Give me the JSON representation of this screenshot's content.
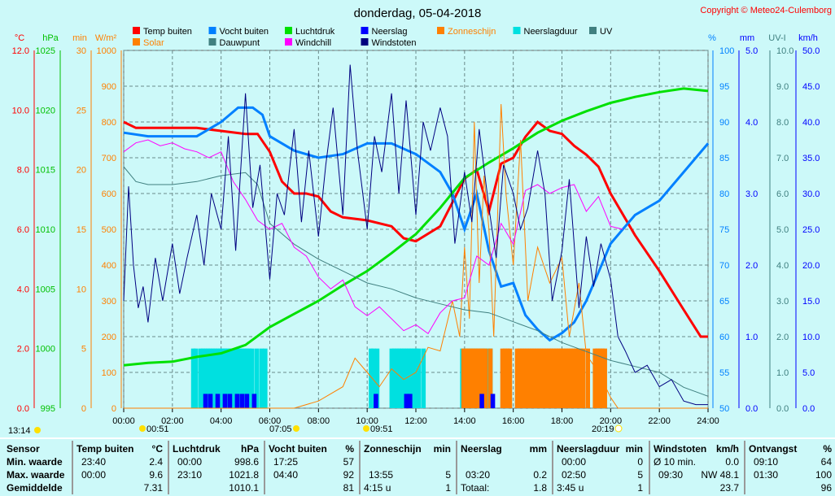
{
  "title": "donderdag, 05-04-2018",
  "copyright": "Copyright © Meteo24-Culemborg",
  "legend": [
    {
      "label": "Temp buiten",
      "color": "#ff0000"
    },
    {
      "label": "Vocht buiten",
      "color": "#0080ff"
    },
    {
      "label": "Luchtdruk",
      "color": "#00e000"
    },
    {
      "label": "Neerslag",
      "color": "#0000ff"
    },
    {
      "label": "Zonneschijn",
      "color": "#ff8000"
    },
    {
      "label": "Neerslagduur",
      "color": "#00e0e0"
    },
    {
      "label": "UV",
      "color": "#408080"
    },
    {
      "label": "Solar",
      "color": "#ff8000"
    },
    {
      "label": "Dauwpunt",
      "color": "#408080"
    },
    {
      "label": "Windchill",
      "color": "#ff00ff"
    },
    {
      "label": "Windstoten",
      "color": "#000080"
    }
  ],
  "sun_events": {
    "left": "13:14",
    "moonrise": "00:51",
    "sunrise": "07:05",
    "moonset": "09:51",
    "sunset": "20:19"
  },
  "chart_data": {
    "type": "line",
    "x_ticks": [
      "00:00",
      "02:00",
      "04:00",
      "06:00",
      "08:00",
      "10:00",
      "12:00",
      "14:00",
      "16:00",
      "18:00",
      "20:00",
      "22:00",
      "24:00"
    ],
    "axes": {
      "temp": {
        "label": "°C",
        "range": [
          0,
          12
        ],
        "ticks": [
          "0.0",
          "2.0",
          "4.0",
          "6.0",
          "8.0",
          "10.0",
          "12.0"
        ]
      },
      "pressure": {
        "label": "hPa",
        "range": [
          995,
          1025
        ],
        "ticks": [
          "995",
          "1000",
          "1005",
          "1010",
          "1015",
          "1020",
          "1025"
        ]
      },
      "minutes": {
        "label": "min",
        "range": [
          0,
          30
        ],
        "ticks": [
          "0",
          "5",
          "10",
          "15",
          "20",
          "25",
          "30"
        ]
      },
      "solar": {
        "label": "W/m²",
        "range": [
          0,
          1000
        ],
        "ticks": [
          "0",
          "100",
          "200",
          "300",
          "400",
          "500",
          "600",
          "700",
          "800",
          "900",
          "1000"
        ]
      },
      "humidity": {
        "label": "%",
        "range": [
          50,
          100
        ],
        "ticks": [
          "50",
          "55",
          "60",
          "65",
          "70",
          "75",
          "80",
          "85",
          "90",
          "95",
          "100"
        ]
      },
      "rain": {
        "label": "mm",
        "range": [
          0,
          5
        ],
        "ticks": [
          "0.0",
          "1.0",
          "2.0",
          "3.0",
          "4.0",
          "5.0"
        ]
      },
      "uv": {
        "label": "UV-I",
        "range": [
          0,
          10
        ],
        "ticks": [
          "0.0",
          "1.0",
          "2.0",
          "3.0",
          "4.0",
          "5.0",
          "6.0",
          "7.0",
          "8.0",
          "9.0",
          "10.0"
        ]
      },
      "wind": {
        "label": "km/h",
        "range": [
          0,
          50
        ],
        "ticks": [
          "0.0",
          "5.0",
          "10.0",
          "15.0",
          "20.0",
          "25.0",
          "30.0",
          "35.0",
          "40.0",
          "45.0",
          "50.0"
        ]
      }
    },
    "series": [
      {
        "name": "Temp buiten",
        "axis": "temp",
        "color": "#ff0000",
        "width": 3,
        "x": [
          0,
          0.5,
          1,
          2,
          3,
          4,
          5,
          5.5,
          6,
          6.5,
          7,
          7.5,
          8,
          8.5,
          9,
          10,
          11,
          11.5,
          12,
          13,
          13.5,
          14,
          14.5,
          15,
          15.5,
          16,
          16.5,
          17,
          17.5,
          18,
          18.5,
          19,
          19.5,
          20,
          21,
          22,
          23,
          23.7,
          24
        ],
        "y": [
          9.6,
          9.4,
          9.4,
          9.4,
          9.4,
          9.3,
          9.2,
          9.2,
          8.6,
          7.6,
          7.2,
          7.2,
          7.1,
          6.6,
          6.4,
          6.3,
          6.1,
          5.7,
          5.6,
          6.1,
          6.9,
          7.7,
          8.0,
          6.6,
          8.2,
          8.4,
          9.1,
          9.6,
          9.3,
          9.2,
          8.8,
          8.5,
          8.1,
          7.2,
          5.8,
          4.6,
          3.3,
          2.4,
          2.4
        ]
      },
      {
        "name": "Vocht buiten",
        "axis": "humidity",
        "color": "#0080ff",
        "width": 3,
        "x": [
          0,
          1,
          2,
          3,
          4,
          4.7,
          5.3,
          5.7,
          6,
          7,
          8,
          9,
          10,
          11,
          12,
          13,
          13.5,
          14,
          14.5,
          15,
          15.5,
          16,
          16.5,
          17,
          17.5,
          18,
          18.5,
          19,
          19.5,
          20,
          21,
          22,
          23,
          24
        ],
        "y": [
          88.5,
          88,
          88,
          88,
          90,
          92,
          92,
          91,
          88,
          86,
          85,
          85.5,
          87,
          87,
          85.5,
          83,
          80,
          75,
          80,
          72,
          67,
          67.5,
          63,
          61,
          59.5,
          60.5,
          62,
          65,
          69,
          73,
          77,
          79,
          83,
          87
        ]
      },
      {
        "name": "Luchtdruk",
        "axis": "pressure",
        "color": "#00e000",
        "width": 3,
        "x": [
          0,
          1,
          2,
          3,
          4,
          5,
          6,
          7,
          8,
          9,
          10,
          11,
          12,
          13,
          14,
          15,
          16,
          17,
          18,
          19,
          20,
          21,
          22,
          23,
          24
        ],
        "y": [
          998.6,
          998.8,
          998.9,
          999.3,
          999.6,
          1000.3,
          1001.8,
          1002.9,
          1004.0,
          1005.3,
          1006.5,
          1008.0,
          1009.6,
          1011.8,
          1014.3,
          1015.6,
          1016.8,
          1018.1,
          1019.1,
          1019.9,
          1020.6,
          1021.1,
          1021.5,
          1021.8,
          1021.6
        ]
      },
      {
        "name": "Solar",
        "axis": "solar",
        "color": "#ff8000",
        "width": 1,
        "x": [
          0,
          7,
          8,
          9,
          9.5,
          10,
          10.5,
          11,
          11.5,
          12,
          12.5,
          13,
          13.5,
          13.8,
          14,
          14.2,
          14.4,
          14.6,
          14.8,
          15,
          15.2,
          15.5,
          15.7,
          16,
          16.3,
          16.6,
          17,
          17.5,
          18,
          18.3,
          18.7,
          19,
          19.5,
          20,
          20.3,
          24
        ],
        "y": [
          0,
          0,
          20,
          60,
          140,
          100,
          60,
          110,
          80,
          100,
          170,
          160,
          300,
          200,
          450,
          250,
          800,
          350,
          650,
          500,
          200,
          850,
          600,
          400,
          750,
          300,
          450,
          350,
          420,
          200,
          350,
          150,
          100,
          30,
          0,
          0
        ]
      },
      {
        "name": "Dauwpunt",
        "axis": "temp",
        "color": "#408080",
        "width": 1,
        "x": [
          0,
          0.5,
          1,
          2,
          3,
          4,
          5,
          5.5,
          6,
          7,
          8,
          9,
          10,
          11,
          12,
          13,
          14,
          15,
          16,
          17,
          18,
          19,
          20,
          21,
          22,
          23,
          24
        ],
        "y": [
          8.1,
          7.6,
          7.5,
          7.5,
          7.6,
          7.8,
          7.9,
          7.5,
          6.2,
          5.5,
          5.0,
          4.6,
          4.2,
          4.0,
          3.7,
          3.5,
          3.3,
          3.2,
          2.9,
          2.6,
          2.2,
          1.9,
          1.6,
          1.4,
          1.2,
          0.7,
          0.4
        ]
      },
      {
        "name": "Windchill",
        "axis": "temp",
        "color": "#ff00ff",
        "width": 1,
        "x": [
          0,
          0.5,
          1,
          1.5,
          2,
          2.5,
          3,
          3.5,
          4,
          4.5,
          5,
          5.5,
          6,
          6.5,
          7,
          7.5,
          8,
          8.5,
          9,
          9.5,
          10,
          10.5,
          11,
          11.5,
          12,
          12.5,
          13,
          13.5,
          14,
          14.5,
          15,
          15.5,
          16,
          16.5,
          17,
          17.5,
          18,
          18.5,
          19,
          19.5,
          20,
          20.5
        ],
        "y": [
          8.6,
          8.9,
          9.0,
          8.8,
          8.9,
          8.7,
          8.6,
          8.4,
          8.6,
          7.6,
          7.0,
          6.3,
          6.0,
          6.2,
          5.4,
          5.1,
          4.4,
          4.0,
          4.3,
          3.4,
          3.1,
          3.4,
          3.0,
          2.6,
          2.8,
          2.5,
          3.2,
          3.6,
          3.7,
          5.1,
          4.8,
          6.2,
          5.5,
          7.3,
          7.5,
          7.2,
          7.4,
          7.5,
          6.6,
          7.1,
          6.1,
          6.0
        ]
      },
      {
        "name": "Windstoten",
        "axis": "wind",
        "color": "#000080",
        "width": 1,
        "x": [
          0,
          0.2,
          0.4,
          0.6,
          0.8,
          1,
          1.3,
          1.6,
          2,
          2.3,
          2.6,
          3,
          3.3,
          3.6,
          4,
          4.3,
          4.6,
          5,
          5.3,
          5.6,
          6,
          6.3,
          6.6,
          7,
          7.3,
          7.6,
          8,
          8.3,
          8.6,
          9,
          9.3,
          9.6,
          10,
          10.3,
          10.6,
          11,
          11.3,
          11.6,
          12,
          12.3,
          12.6,
          13,
          13.3,
          13.6,
          14,
          14.3,
          14.6,
          15,
          15.3,
          15.6,
          16,
          16.3,
          16.6,
          17,
          17.3,
          17.6,
          18,
          18.3,
          18.7,
          19,
          19.3,
          19.6,
          20,
          20.3,
          20.6,
          21,
          21.5,
          22,
          22.5,
          23,
          23.5,
          24
        ],
        "y": [
          15,
          31,
          20,
          14,
          17,
          12,
          21,
          15,
          23,
          16,
          21,
          27,
          20,
          30,
          25,
          38,
          22,
          44,
          28,
          34,
          18,
          30,
          27,
          39,
          26,
          36,
          24,
          34,
          42,
          27,
          48,
          36,
          25,
          38,
          33,
          44,
          30,
          43,
          27,
          40,
          36,
          42,
          38,
          23,
          33,
          26,
          39,
          28,
          21,
          34,
          30,
          25,
          28,
          36,
          30,
          15,
          22,
          32,
          14,
          24,
          17,
          23,
          18,
          10,
          8,
          5,
          6,
          3,
          4,
          1,
          0.5,
          0.5
        ]
      }
    ],
    "bars": {
      "neerslagduur": {
        "axis": "minutes",
        "color": "#00e0e0",
        "x": [
          2.85,
          2.95,
          3.15,
          3.25,
          3.35,
          3.45,
          3.55,
          3.65,
          3.75,
          3.85,
          3.95,
          4.05,
          4.15,
          4.25,
          4.35,
          4.45,
          4.55,
          4.65,
          4.75,
          4.85,
          4.95,
          5.05,
          5.15,
          5.25,
          5.45,
          5.65,
          5.8,
          10.15,
          10.25,
          10.4,
          11.0,
          11.1,
          11.2,
          11.3,
          11.4,
          11.5,
          11.6,
          11.7,
          11.8,
          11.9,
          12.0,
          12.1,
          12.3,
          13.9,
          14.05,
          14.15,
          14.25,
          14.35,
          14.45,
          14.55,
          14.7,
          14.8,
          14.95,
          15.05
        ],
        "values": [
          5,
          5,
          5,
          5,
          5,
          5,
          5,
          5,
          5,
          5,
          5,
          5,
          5,
          5,
          5,
          5,
          5,
          5,
          5,
          5,
          5,
          5,
          5,
          5,
          5,
          5,
          5,
          5,
          5,
          5,
          5,
          5,
          5,
          5,
          5,
          5,
          5,
          5,
          5,
          5,
          5,
          5,
          5,
          5,
          5,
          5,
          5,
          5,
          5,
          5,
          5,
          5,
          5,
          5
        ]
      },
      "zonneschijn": {
        "axis": "minutes",
        "color": "#ff8000",
        "x": [
          13.95,
          14.05,
          14.15,
          14.25,
          14.35,
          14.45,
          14.55,
          14.65,
          14.75,
          14.85,
          15.05,
          15.55,
          15.65,
          15.75,
          15.85,
          16.15,
          16.25,
          16.35,
          16.45,
          16.55,
          16.65,
          16.75,
          16.85,
          16.95,
          17.05,
          17.15,
          17.25,
          17.35,
          17.45,
          17.55,
          17.65,
          17.75,
          17.85,
          17.95,
          18.05,
          18.15,
          18.25,
          18.35,
          18.45,
          18.55,
          18.65,
          18.75,
          18.85,
          19.05,
          19.35,
          19.45,
          19.55,
          19.65,
          19.75
        ],
        "values": [
          5,
          5,
          5,
          5,
          5,
          5,
          5,
          5,
          5,
          5,
          5,
          5,
          5,
          5,
          5,
          5,
          5,
          5,
          5,
          5,
          5,
          5,
          5,
          5,
          5,
          5,
          5,
          5,
          5,
          5,
          5,
          5,
          5,
          5,
          5,
          5,
          5,
          5,
          5,
          5,
          5,
          5,
          5,
          5,
          5,
          5,
          5,
          5,
          5
        ]
      },
      "neerslag": {
        "axis": "minutes",
        "color": "#0000ff",
        "x": [
          3.35,
          3.55,
          3.85,
          4.15,
          4.35,
          4.65,
          4.85,
          5.05,
          5.35,
          10.35,
          11.6,
          11.75,
          14.7,
          15.15
        ],
        "values": [
          1.2,
          1.2,
          1.2,
          1.2,
          1.2,
          1.2,
          1.2,
          1.2,
          1.2,
          1.2,
          1.2,
          1.2,
          1.2,
          1.2
        ]
      }
    }
  },
  "table": [
    {
      "header": "Sensor",
      "unit": "",
      "rows": [
        {
          "a": "Min. waarde",
          "b": ""
        },
        {
          "a": "Max. waarde",
          "b": ""
        },
        {
          "a": "Gemiddelde",
          "b": ""
        }
      ]
    },
    {
      "header": "Temp buiten",
      "unit": "°C",
      "rows": [
        {
          "a": "23:40",
          "b": "2.4"
        },
        {
          "a": "00:00",
          "b": "9.6"
        },
        {
          "a": "",
          "b": "7.31"
        }
      ]
    },
    {
      "header": "Luchtdruk",
      "unit": "hPa",
      "rows": [
        {
          "a": "00:00",
          "b": "998.6"
        },
        {
          "a": "23:10",
          "b": "1021.8"
        },
        {
          "a": "",
          "b": "1010.1"
        }
      ]
    },
    {
      "header": "Vocht buiten",
      "unit": "%",
      "rows": [
        {
          "a": "17:25",
          "b": "57"
        },
        {
          "a": "04:40",
          "b": "92"
        },
        {
          "a": "",
          "b": "81"
        }
      ]
    },
    {
      "header": "Zonneschijn",
      "unit": "min",
      "rows": [
        {
          "a": "",
          "b": ""
        },
        {
          "a": "13:55",
          "b": "5"
        },
        {
          "a": "4:15 u",
          "b": "1"
        }
      ]
    },
    {
      "header": "Neerslag",
      "unit": "mm",
      "rows": [
        {
          "a": "",
          "b": ""
        },
        {
          "a": "03:20",
          "b": "0.2"
        },
        {
          "a": "Totaal:",
          "b": "1.8"
        }
      ]
    },
    {
      "header": "Neerslagduur",
      "unit": "min",
      "rows": [
        {
          "a": "00:00",
          "b": "0"
        },
        {
          "a": "02:50",
          "b": "5"
        },
        {
          "a": "3:45 u",
          "b": "1"
        }
      ]
    },
    {
      "header": "Windstoten",
      "unit": "km/h",
      "rows": [
        {
          "a": "Ø 10 min.",
          "b": "0.0"
        },
        {
          "a": "09:30",
          "b": "NW 48.1"
        },
        {
          "a": "",
          "b": "23.7"
        }
      ]
    },
    {
      "header": "Ontvangst",
      "unit": "%",
      "rows": [
        {
          "a": "09:10",
          "b": "64"
        },
        {
          "a": "01:30",
          "b": "100"
        },
        {
          "a": "",
          "b": "96"
        }
      ]
    }
  ]
}
